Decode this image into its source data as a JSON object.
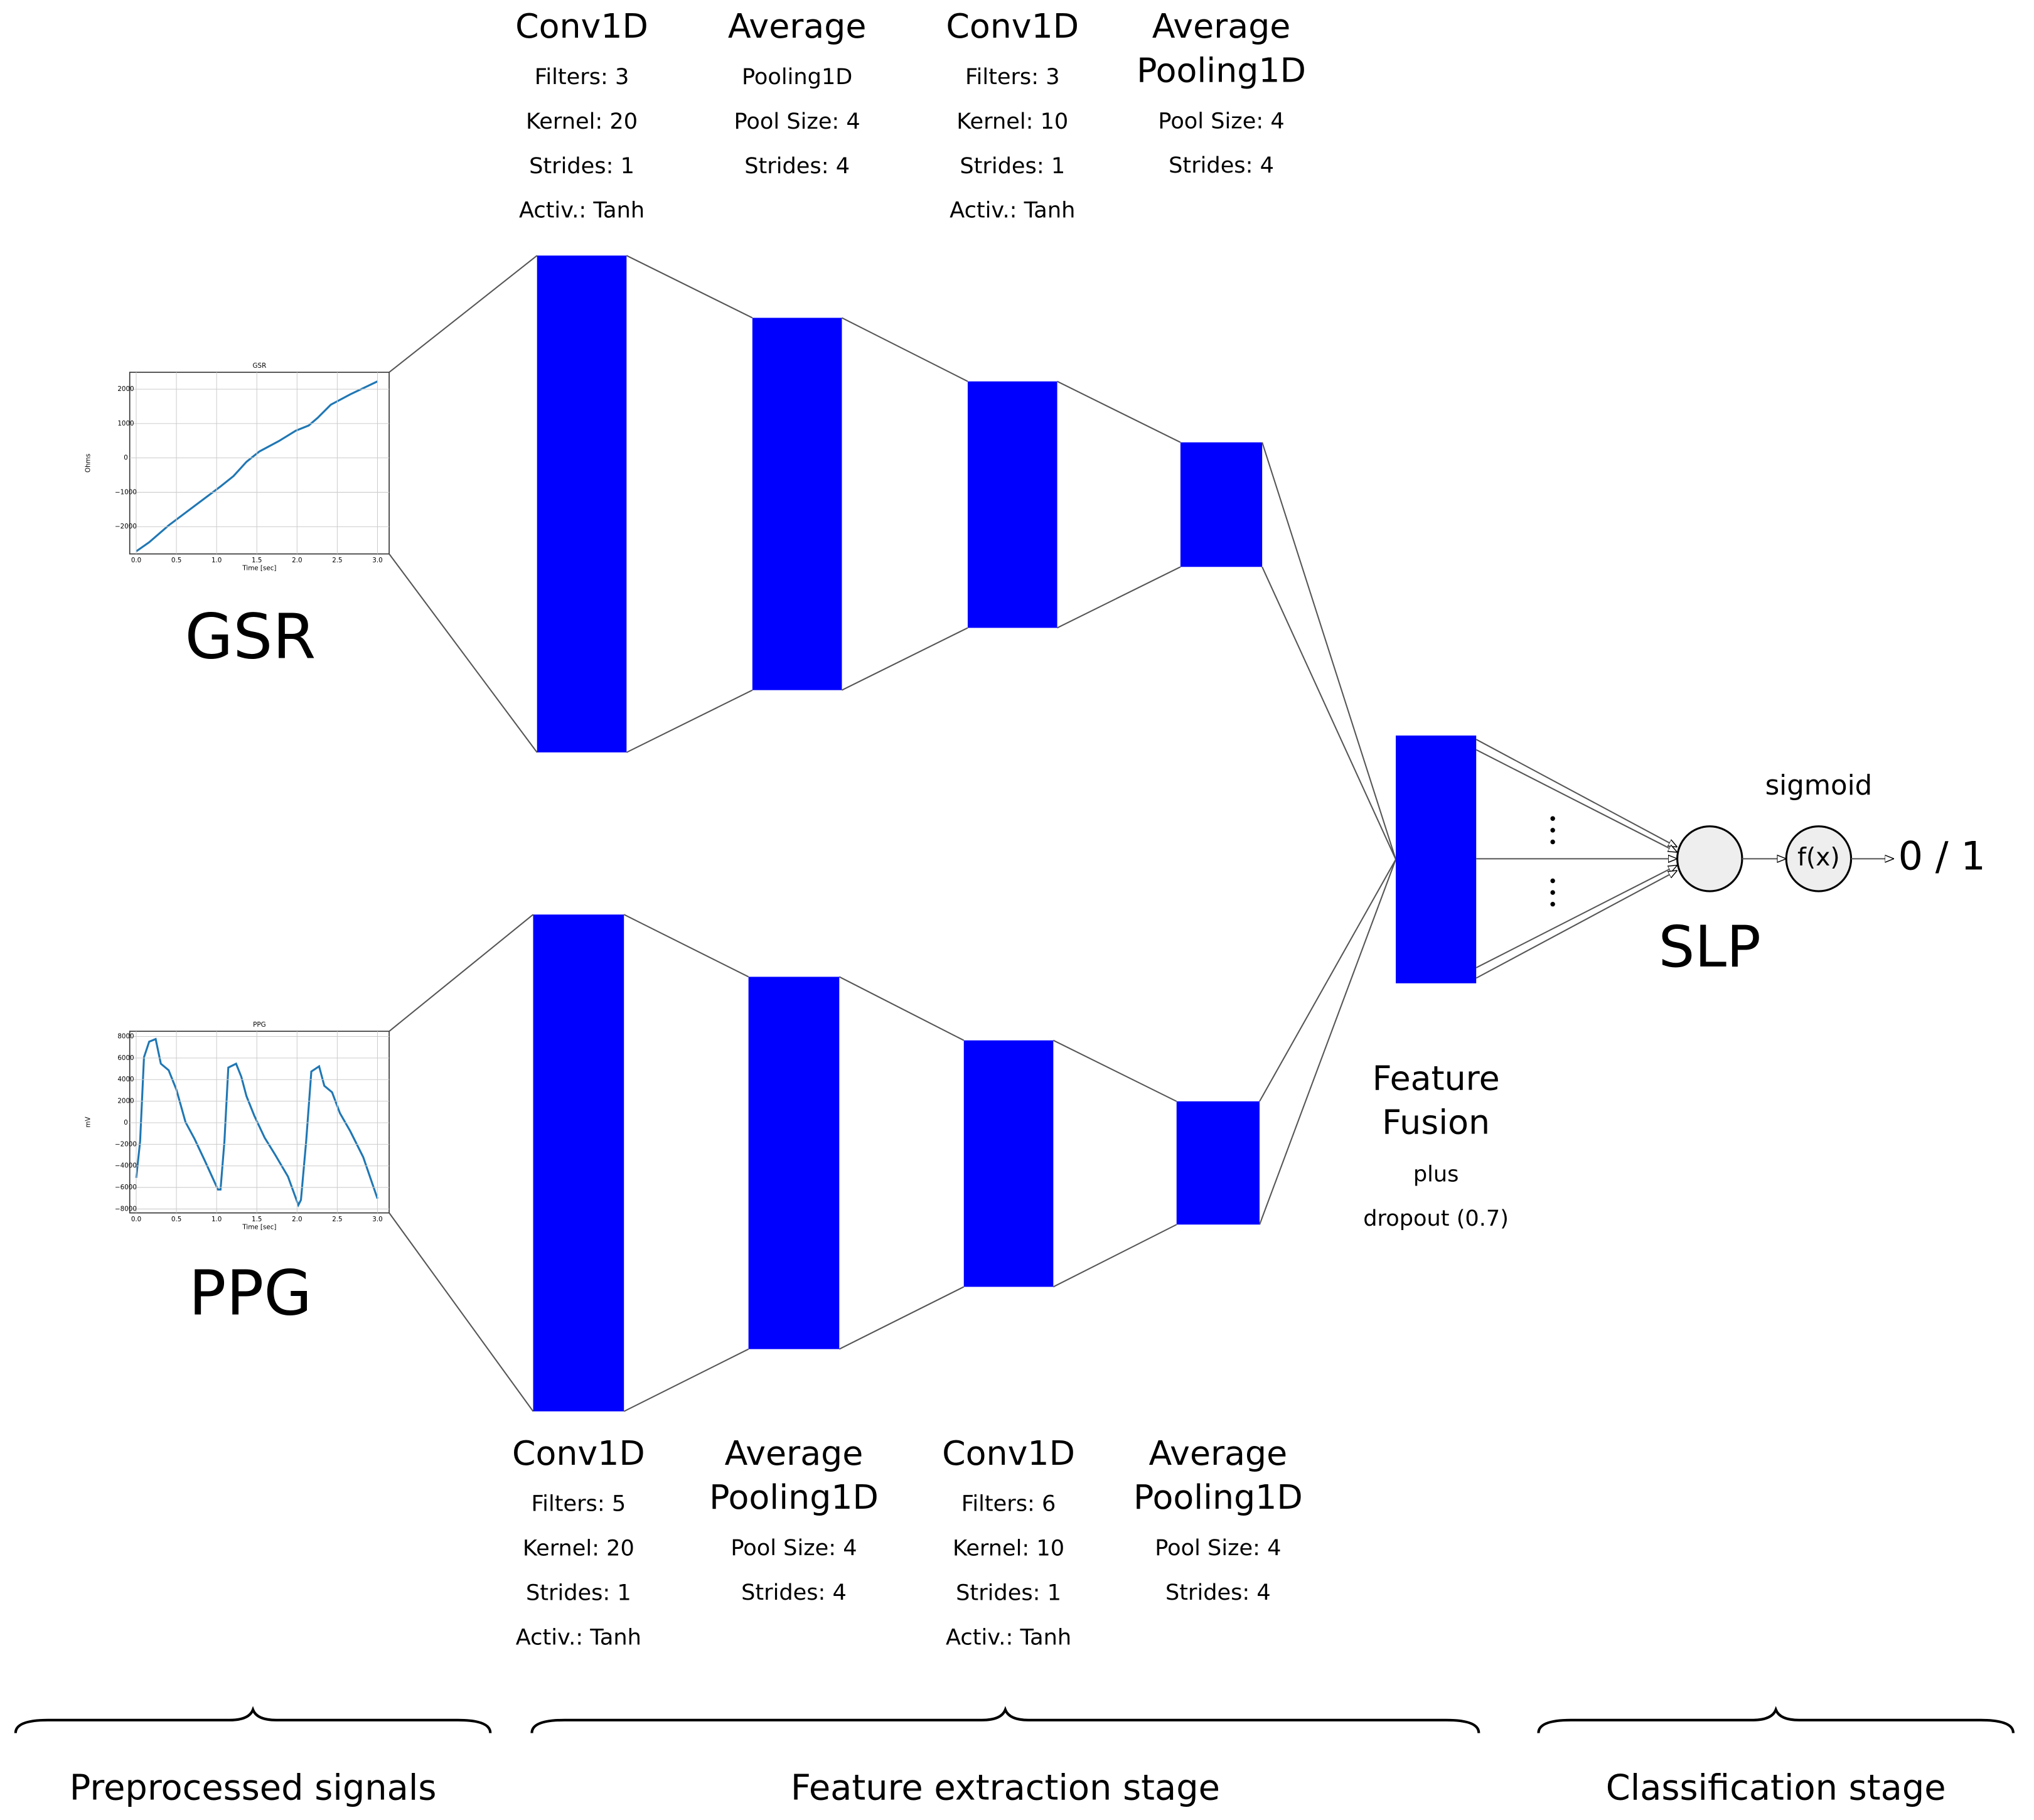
{
  "inputs": [
    {
      "label": "GSR",
      "plot": {
        "title": "GSR",
        "y_label": "Ohms",
        "x_label": "Time [sec]",
        "x_ticks": [
          "0.0",
          "0.5",
          "1.0",
          "1.5",
          "2.0",
          "2.5",
          "3.0"
        ],
        "y_ticks": [
          "2000",
          "1000",
          "0",
          "−1000",
          "−2000"
        ]
      }
    },
    {
      "label": "PPG",
      "plot": {
        "title": "PPG",
        "y_label": "mV",
        "x_label": "Time [sec]",
        "x_ticks": [
          "0.0",
          "0.5",
          "1.0",
          "1.5",
          "2.0",
          "2.5",
          "3.0"
        ],
        "y_ticks": [
          "8000",
          "6000",
          "4000",
          "2000",
          "0",
          "−2000",
          "−4000",
          "−6000",
          "−8000"
        ]
      }
    }
  ],
  "branches": [
    {
      "layers": [
        {
          "name": [
            "Conv1D"
          ],
          "params": [
            "Filters: 3",
            "Kernel: 20",
            "Strides: 1",
            "Activ.: Tanh"
          ]
        },
        {
          "name": [
            "Average"
          ],
          "params": [
            "Pooling1D",
            "Pool Size: 4",
            "Strides: 4"
          ]
        },
        {
          "name": [
            "Conv1D"
          ],
          "params": [
            "Filters: 3",
            "Kernel: 10",
            "Strides: 1",
            "Activ.: Tanh"
          ]
        },
        {
          "name": [
            "Average",
            "Pooling1D"
          ],
          "params": [
            "Pool Size: 4",
            "Strides: 4"
          ]
        }
      ]
    },
    {
      "layers": [
        {
          "name": [
            "Conv1D"
          ],
          "params": [
            "Filters: 5",
            "Kernel: 20",
            "Strides: 1",
            "Activ.: Tanh"
          ]
        },
        {
          "name": [
            "Average",
            "Pooling1D"
          ],
          "params": [
            "Pool Size: 4",
            "Strides: 4"
          ]
        },
        {
          "name": [
            "Conv1D"
          ],
          "params": [
            "Filters: 6",
            "Kernel: 10",
            "Strides: 1",
            "Activ.: Tanh"
          ]
        },
        {
          "name": [
            "Average",
            "Pooling1D"
          ],
          "params": [
            "Pool Size: 4",
            "Strides: 4"
          ]
        }
      ]
    }
  ],
  "fusion": {
    "title": [
      "Feature",
      "Fusion"
    ],
    "notes": [
      "plus",
      "dropout (0.7)"
    ]
  },
  "classifier": {
    "label": "SLP",
    "activation": "sigmoid",
    "function": "f(x)",
    "output": "0 / 1"
  },
  "stages": [
    "Preprocessed signals",
    "Feature extraction stage",
    "Classification stage"
  ]
}
